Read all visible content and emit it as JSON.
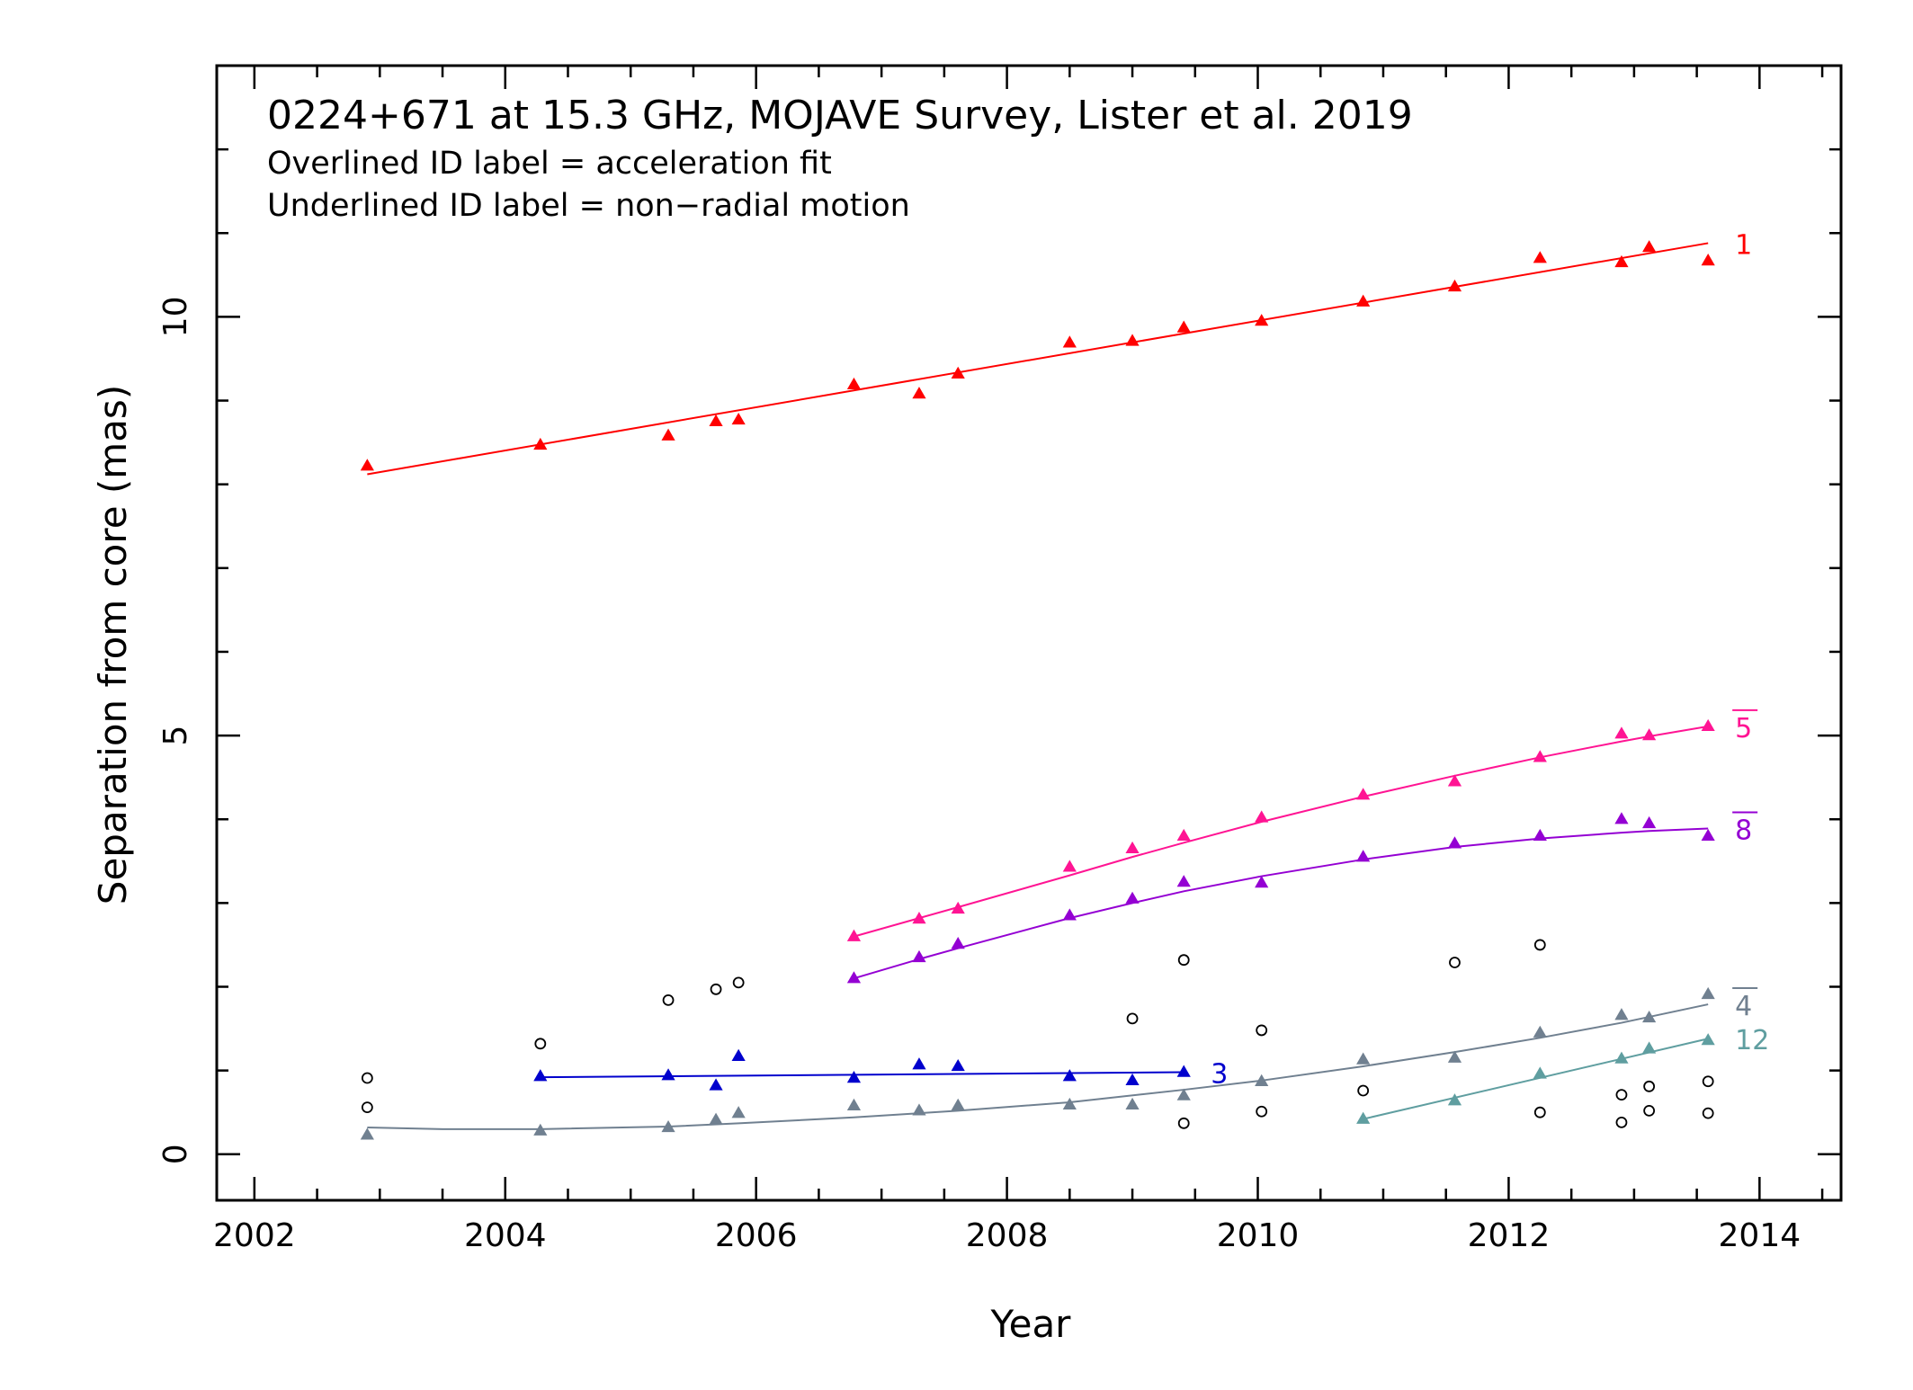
{
  "chart_data": {
    "type": "scatter",
    "title": "0224+671 at 15.3 GHz, MOJAVE Survey, Lister et al. 2019",
    "notes": [
      "Overlined ID label = acceleration fit",
      "Underlined ID label = non−radial motion"
    ],
    "xlabel": "Year",
    "ylabel": "Separation from core (mas)",
    "xlim": [
      2001.7,
      2014.65
    ],
    "ylim": [
      -0.55,
      13.0
    ],
    "xticks": [
      2002,
      2004,
      2006,
      2008,
      2010,
      2012,
      2014
    ],
    "xtick_labels": [
      "2002",
      "2004",
      "2006",
      "2008",
      "2010",
      "2012",
      "2014"
    ],
    "yticks": [
      0,
      5,
      10
    ],
    "ytick_labels": [
      "0",
      "5",
      "10"
    ],
    "grid": false,
    "series": [
      {
        "name": "1",
        "color": "#ff0000",
        "label_mark": "none",
        "x": [
          2002.9,
          2004.28,
          2005.3,
          2005.68,
          2005.86,
          2006.78,
          2007.3,
          2007.61,
          2008.5,
          2009.0,
          2009.41,
          2010.03,
          2010.84,
          2011.57,
          2012.25,
          2012.9,
          2013.12,
          2013.59
        ],
        "y": [
          8.22,
          8.47,
          8.58,
          8.75,
          8.77,
          9.19,
          9.08,
          9.32,
          9.69,
          9.71,
          9.87,
          9.95,
          10.18,
          10.36,
          10.7,
          10.65,
          10.83,
          10.67
        ],
        "fit_x": [
          2002.9,
          2013.59
        ],
        "fit_y": [
          8.12,
          10.88
        ]
      },
      {
        "name": "5",
        "color": "#ff1493",
        "label_mark": "overline",
        "x": [
          2006.78,
          2007.3,
          2007.61,
          2008.5,
          2009.0,
          2009.41,
          2010.03,
          2010.84,
          2011.57,
          2012.25,
          2012.9,
          2013.12,
          2013.59
        ],
        "y": [
          2.6,
          2.81,
          2.93,
          3.43,
          3.65,
          3.8,
          4.02,
          4.29,
          4.45,
          4.74,
          5.02,
          5.0,
          5.11
        ],
        "fit_x": [
          2006.78,
          2007.3,
          2007.61,
          2008.5,
          2009.0,
          2009.41,
          2010.03,
          2010.84,
          2011.57,
          2012.25,
          2012.9,
          2013.12,
          2013.59
        ],
        "fit_y": [
          2.6,
          2.82,
          2.95,
          3.33,
          3.55,
          3.72,
          3.97,
          4.27,
          4.52,
          4.74,
          4.93,
          4.99,
          5.11
        ]
      },
      {
        "name": "8",
        "color": "#9400d3",
        "label_mark": "overline",
        "x": [
          2006.78,
          2007.3,
          2007.61,
          2008.5,
          2009.0,
          2009.41,
          2010.03,
          2010.84,
          2011.57,
          2012.25,
          2012.9,
          2013.12,
          2013.59
        ],
        "y": [
          2.1,
          2.35,
          2.51,
          2.85,
          3.05,
          3.25,
          3.24,
          3.55,
          3.71,
          3.8,
          4.0,
          3.95,
          3.8
        ],
        "fit_x": [
          2006.78,
          2007.3,
          2007.61,
          2008.5,
          2009.0,
          2009.41,
          2010.03,
          2010.84,
          2011.57,
          2012.25,
          2012.9,
          2013.12,
          2013.59
        ],
        "fit_y": [
          2.1,
          2.33,
          2.46,
          2.82,
          3.0,
          3.14,
          3.32,
          3.52,
          3.67,
          3.77,
          3.84,
          3.86,
          3.89
        ]
      },
      {
        "name": "3",
        "color": "#0000cd",
        "label_mark": "none",
        "x": [
          2004.28,
          2005.3,
          2005.68,
          2005.86,
          2006.78,
          2007.3,
          2007.61,
          2008.5,
          2009.0,
          2009.41
        ],
        "y": [
          0.93,
          0.94,
          0.82,
          1.17,
          0.91,
          1.07,
          1.05,
          0.93,
          0.88,
          0.98
        ],
        "fit_x": [
          2004.28,
          2009.41
        ],
        "fit_y": [
          0.92,
          0.98
        ]
      },
      {
        "name": "4",
        "color": "#708090",
        "label_mark": "overline",
        "x": [
          2002.9,
          2004.28,
          2005.3,
          2005.68,
          2005.86,
          2006.78,
          2007.3,
          2007.61,
          2008.5,
          2009.0,
          2009.41,
          2010.03,
          2010.84,
          2011.57,
          2012.25,
          2012.9,
          2013.12,
          2013.59
        ],
        "y": [
          0.23,
          0.28,
          0.32,
          0.41,
          0.49,
          0.58,
          0.52,
          0.58,
          0.59,
          0.59,
          0.7,
          0.87,
          1.13,
          1.15,
          1.45,
          1.66,
          1.63,
          1.91
        ],
        "fit_x": [
          2002.9,
          2003.5,
          2004.28,
          2005.3,
          2005.86,
          2006.78,
          2007.61,
          2008.5,
          2009.41,
          2010.03,
          2010.84,
          2011.57,
          2012.25,
          2012.9,
          2013.59
        ],
        "fit_y": [
          0.32,
          0.3,
          0.3,
          0.33,
          0.37,
          0.44,
          0.52,
          0.62,
          0.77,
          0.88,
          1.05,
          1.22,
          1.39,
          1.57,
          1.79
        ]
      },
      {
        "name": "12",
        "color": "#5f9ea0",
        "label_mark": "none",
        "x": [
          2010.84,
          2011.57,
          2012.25,
          2012.9,
          2013.12,
          2013.59
        ],
        "y": [
          0.42,
          0.64,
          0.96,
          1.14,
          1.26,
          1.36
        ],
        "fit_x": [
          2010.84,
          2013.59
        ],
        "fit_y": [
          0.42,
          1.38
        ]
      }
    ],
    "unassociated": {
      "color": "#000000",
      "x": [
        2002.9,
        2002.9,
        2004.28,
        2005.3,
        2005.68,
        2005.86,
        2009.0,
        2009.41,
        2009.41,
        2010.03,
        2010.03,
        2010.84,
        2011.57,
        2012.25,
        2012.25,
        2012.9,
        2012.9,
        2013.12,
        2013.12,
        2013.59,
        2013.59
      ],
      "y": [
        0.91,
        0.56,
        1.32,
        1.84,
        1.97,
        2.05,
        1.62,
        2.32,
        0.37,
        1.48,
        0.51,
        0.76,
        2.29,
        2.5,
        0.5,
        0.71,
        0.38,
        0.81,
        0.52,
        0.87,
        0.49
      ]
    }
  }
}
